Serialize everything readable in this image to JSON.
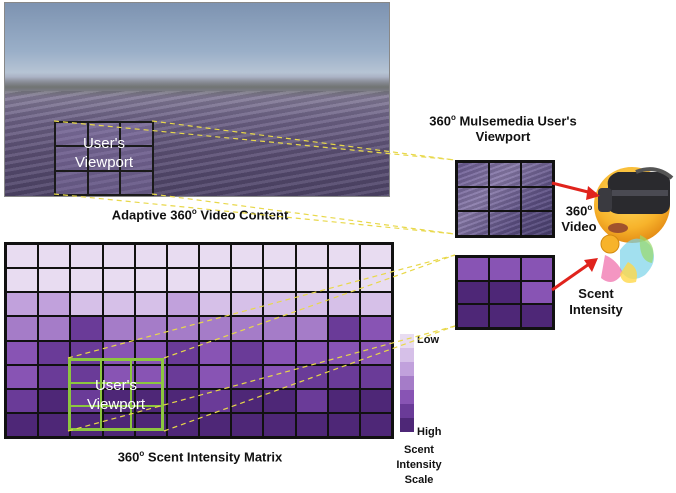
{
  "panorama_caption_main": "Adaptive 360",
  "panorama_caption_sup": "o",
  "panorama_caption_end": " Video Content",
  "viewport_label": "User's\nViewport",
  "user_viewport_title_a": "360",
  "user_viewport_title_sup": "o",
  "user_viewport_title_b": " Mulsemedia User's",
  "user_viewport_title_c": "Viewport",
  "video_label_a": "360",
  "video_label_sup": "o",
  "video_label_b": "Video",
  "scent_label_a": "Scent",
  "scent_label_b": "Intensity",
  "matrix_caption_a": "360",
  "matrix_caption_sup": "o",
  "matrix_caption_b": " Scent Intensity Matrix",
  "scale_low": "Low",
  "scale_high": "High",
  "scale_caption_a": "Scent",
  "scale_caption_b": "Intensity",
  "scale_caption_c": "Scale",
  "colors": {
    "levels": [
      "#e8dcf1",
      "#d6c0e8",
      "#c1a1dc",
      "#a57cc8",
      "#8854b4",
      "#6a3b98",
      "#4e2777"
    ],
    "connector": "#e8d84a",
    "arrow": "#e0231c",
    "viewport_box": "#8cc63f"
  },
  "scent_matrix": [
    [
      0,
      0,
      0,
      0,
      0,
      0,
      0,
      0,
      0,
      0,
      0,
      0
    ],
    [
      0,
      0,
      0,
      0,
      0,
      0,
      0,
      0,
      0,
      0,
      0,
      0
    ],
    [
      2,
      2,
      1,
      1,
      1,
      2,
      1,
      1,
      1,
      1,
      1,
      1
    ],
    [
      3,
      3,
      5,
      3,
      3,
      3,
      3,
      3,
      3,
      3,
      5,
      4
    ],
    [
      4,
      5,
      5,
      4,
      4,
      5,
      4,
      5,
      4,
      4,
      4,
      4
    ],
    [
      4,
      5,
      5,
      4,
      4,
      5,
      4,
      5,
      4,
      5,
      5,
      5
    ],
    [
      5,
      6,
      5,
      6,
      6,
      6,
      5,
      6,
      6,
      5,
      6,
      6
    ],
    [
      6,
      6,
      6,
      6,
      6,
      6,
      6,
      6,
      6,
      6,
      6,
      6
    ]
  ],
  "mini_matrix": [
    [
      4,
      4,
      4
    ],
    [
      6,
      6,
      4
    ],
    [
      6,
      6,
      6
    ]
  ]
}
